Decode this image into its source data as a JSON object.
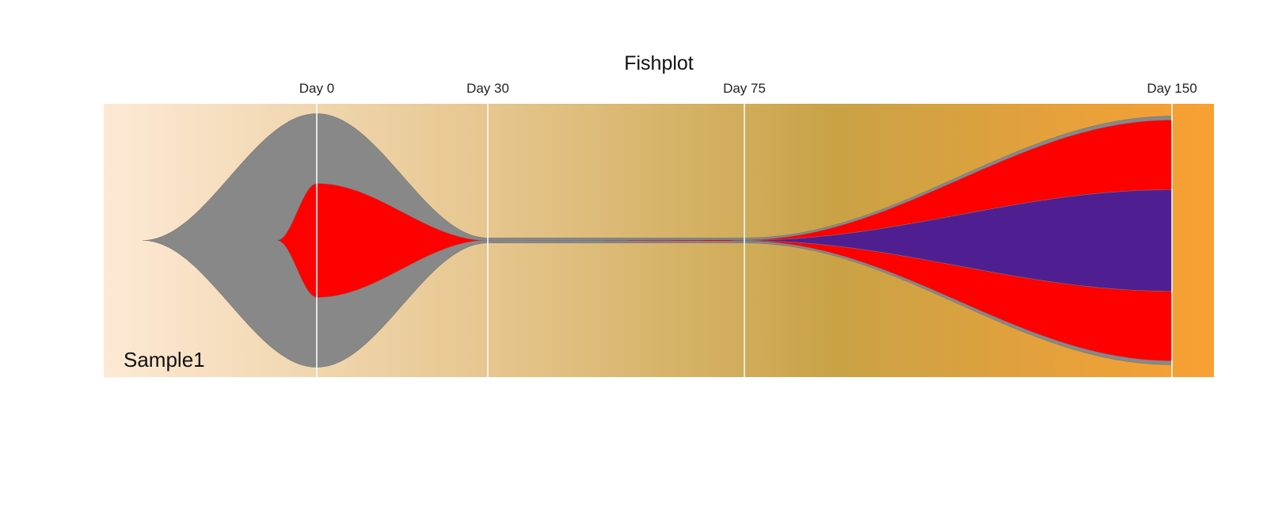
{
  "chart_data": {
    "type": "area",
    "title": "Fishplot",
    "sample_label": "Sample1",
    "timepoints": [
      0,
      30,
      75,
      150
    ],
    "timepoint_labels": [
      "Day 0",
      "Day 30",
      "Day 75",
      "Day 150"
    ],
    "clones": [
      {
        "id": 1,
        "parent": 0,
        "color": "#888888",
        "values": [
          100,
          2,
          2,
          98
        ]
      },
      {
        "id": 2,
        "parent": 1,
        "color": "#ff0000",
        "values": [
          45,
          0,
          0.5,
          95
        ]
      },
      {
        "id": 3,
        "parent": 2,
        "color": "#4f1f91",
        "values": [
          0,
          0,
          0.1,
          40
        ]
      }
    ],
    "background_colors": [
      "#fde9d5",
      "#e6c68e",
      "#c9a246",
      "#f9a033"
    ],
    "grid": true
  }
}
